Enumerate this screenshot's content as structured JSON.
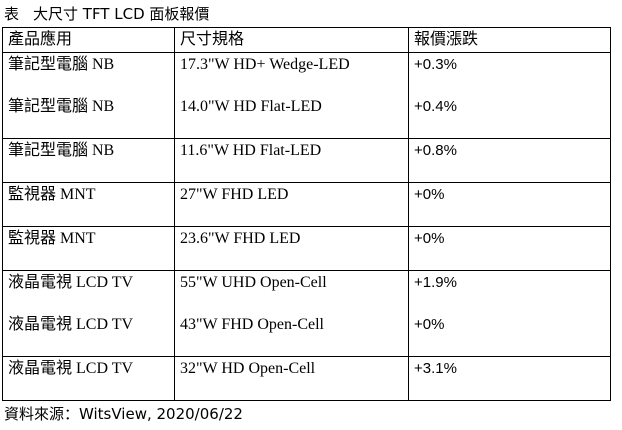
{
  "caption": {
    "label": "表",
    "title": "大尺寸 TFT LCD 面板報價"
  },
  "table": {
    "headers": [
      "產品應用",
      "尺寸規格",
      "報價漲跌"
    ],
    "groups": [
      {
        "rows": [
          {
            "application": "筆記型電腦 NB",
            "spec": "17.3\"W HD+ Wedge-LED",
            "change": "+0.3%"
          },
          {
            "application": "筆記型電腦 NB",
            "spec": "14.0\"W HD Flat-LED",
            "change": "+0.4%"
          }
        ]
      },
      {
        "rows": [
          {
            "application": "筆記型電腦 NB",
            "spec": "11.6\"W HD Flat-LED",
            "change": "+0.8%"
          }
        ]
      },
      {
        "rows": [
          {
            "application": "監視器 MNT",
            "spec": "27\"W FHD LED",
            "change": "+0%"
          }
        ]
      },
      {
        "rows": [
          {
            "application": "監視器 MNT",
            "spec": "23.6\"W FHD LED",
            "change": "+0%"
          }
        ]
      },
      {
        "rows": [
          {
            "application": "液晶電視 LCD TV",
            "spec": "55\"W UHD Open-Cell",
            "change": "+1.9%"
          },
          {
            "application": "液晶電視 LCD TV",
            "spec": "43\"W FHD Open-Cell",
            "change": "+0%"
          }
        ]
      },
      {
        "rows": [
          {
            "application": "液晶電視 LCD TV",
            "spec": "32\"W HD Open-Cell",
            "change": "+3.1%"
          }
        ]
      }
    ]
  },
  "source": "資料來源：WitsView, 2020/06/22"
}
